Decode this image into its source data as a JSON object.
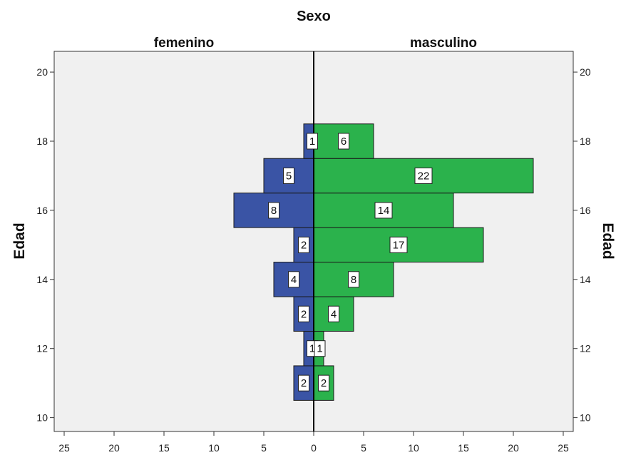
{
  "chart_data": {
    "type": "bar",
    "orientation": "horizontal",
    "layout": "population-pyramid",
    "title": "Sexo",
    "ylabel": "Edad",
    "ylim": [
      9.6,
      20.6
    ],
    "yticks": [
      "10",
      "12",
      "14",
      "16",
      "18",
      "20"
    ],
    "xlim": [
      0,
      26
    ],
    "xticks": [
      "0",
      "5",
      "10",
      "15",
      "20",
      "25"
    ],
    "categories": [
      11,
      12,
      13,
      14,
      15,
      16,
      17,
      18
    ],
    "series": [
      {
        "name": "femenino",
        "side": "left",
        "color": "#3A54A5",
        "values": [
          2,
          1,
          2,
          4,
          2,
          8,
          5,
          1
        ]
      },
      {
        "name": "masculino",
        "side": "right",
        "color": "#2BB24C",
        "values": [
          2,
          1,
          4,
          8,
          17,
          14,
          22,
          6
        ]
      }
    ],
    "grid": false,
    "legend": "none",
    "background_color": "#F0F0F0"
  }
}
